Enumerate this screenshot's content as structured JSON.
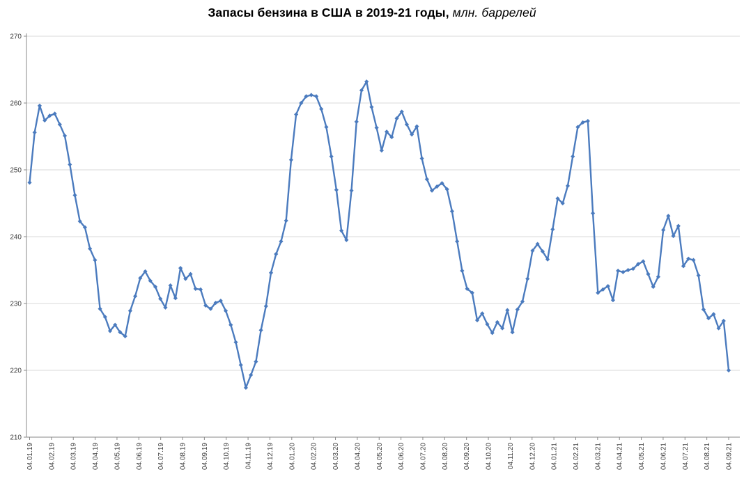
{
  "title": {
    "bold": "Запасы бензина в США в 2019-21 годы,",
    "italic": " млн. баррелей"
  },
  "chart_data": {
    "type": "line",
    "title": "Запасы бензина в США в 2019-21 годы, млн. баррелей",
    "subtitle": "",
    "xlabel": "",
    "ylabel": "",
    "ylim": [
      210,
      270
    ],
    "ytick_step": 10,
    "y_ticks": [
      210,
      220,
      230,
      240,
      250,
      260,
      270
    ],
    "grid": "horizontal",
    "legend_position": "none",
    "marker": "diamond",
    "line_color": "#4b7bbe",
    "marker_color": "#4b7bbe",
    "grid_color": "#d9d9d9",
    "axis_color": "#898989",
    "label_color": "#404040",
    "x_frequency": "weekly",
    "x_tick_labels": [
      "04.01.19",
      "04.02.19",
      "04.03.19",
      "04.04.19",
      "04.05.19",
      "04.06.19",
      "04.07.19",
      "04.08.19",
      "04.09.19",
      "04.10.19",
      "04.11.19",
      "04.12.19",
      "04.01.20",
      "04.02.20",
      "04.03.20",
      "04.04.20",
      "04.05.20",
      "04.06.20",
      "04.07.20",
      "04.08.20",
      "04.09.20",
      "04.10.20",
      "04.11.20",
      "04.12.20",
      "04.01.21",
      "04.02.21",
      "04.03.21",
      "04.04.21",
      "04.05.21",
      "04.06.21",
      "04.07.21",
      "04.08.21",
      "04.09.21"
    ],
    "values": [
      248.1,
      255.6,
      259.6,
      257.4,
      258.1,
      258.4,
      256.8,
      255.1,
      250.8,
      246.2,
      242.3,
      241.4,
      238.2,
      236.5,
      229.2,
      228.0,
      225.9,
      226.8,
      225.7,
      225.1,
      228.9,
      231.1,
      233.8,
      234.8,
      233.4,
      232.5,
      230.7,
      229.4,
      232.7,
      230.8,
      235.3,
      233.7,
      234.4,
      232.2,
      232.1,
      229.7,
      229.2,
      230.1,
      230.4,
      228.9,
      226.8,
      224.2,
      220.8,
      217.4,
      219.3,
      221.3,
      226.0,
      229.6,
      234.6,
      237.4,
      239.3,
      242.4,
      251.5,
      258.3,
      260.0,
      261.0,
      261.2,
      261.0,
      259.1,
      256.4,
      252.0,
      247.0,
      240.9,
      239.5,
      246.9,
      257.2,
      261.9,
      263.2,
      259.4,
      256.3,
      252.9,
      255.7,
      254.9,
      257.7,
      258.7,
      256.8,
      255.3,
      256.5,
      251.7,
      248.6,
      246.9,
      247.5,
      248.0,
      247.1,
      243.8,
      239.3,
      234.9,
      232.2,
      231.6,
      227.5,
      228.5,
      226.9,
      225.6,
      227.2,
      226.3,
      229.0,
      225.7,
      229.1,
      230.3,
      233.7,
      237.9,
      238.9,
      237.8,
      236.6,
      241.1,
      245.7,
      245.0,
      247.6,
      252.0,
      256.4,
      257.1,
      257.3,
      243.5,
      231.6,
      232.1,
      232.6,
      230.5,
      234.9,
      234.7,
      235.0,
      235.2,
      235.9,
      236.3,
      234.4,
      232.5,
      234.0,
      241.0,
      243.1,
      240.1,
      241.6,
      235.6,
      236.7,
      236.5,
      234.2,
      229.1,
      227.8,
      228.4,
      226.3,
      227.4,
      220.0
    ]
  }
}
